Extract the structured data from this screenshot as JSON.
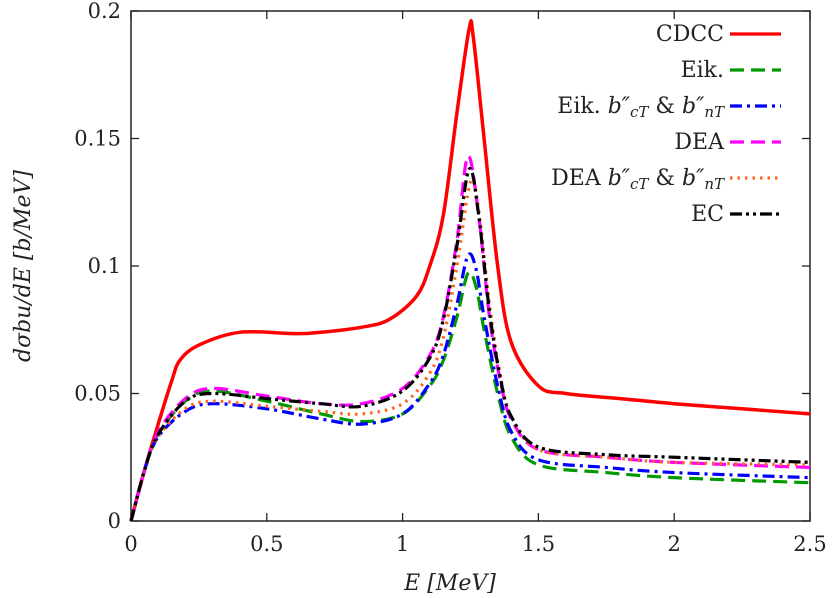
{
  "chart_data": {
    "type": "line",
    "title": "",
    "xlabel": "E [MeV]",
    "ylabel": "dσbu/dE [b/MeV]",
    "xlim": [
      0,
      2.5
    ],
    "ylim": [
      0,
      0.2
    ],
    "xticks": [
      "0",
      "0.5",
      "1",
      "1.5",
      "2",
      "2.5"
    ],
    "yticks": [
      "0",
      "0.05",
      "0.1",
      "0.15",
      "0.2"
    ],
    "grid": false,
    "legend_placement": "top-right",
    "series": [
      {
        "name": "CDCC",
        "color": "#ff0000",
        "dash": "solid",
        "x": [
          0,
          0.05,
          0.1,
          0.15,
          0.18,
          0.25,
          0.4,
          0.6,
          0.7,
          0.85,
          0.95,
          1.05,
          1.1,
          1.15,
          1.2,
          1.245,
          1.26,
          1.3,
          1.35,
          1.4,
          1.5,
          1.6,
          1.8,
          2.0,
          2.25,
          2.5
        ],
        "y": [
          0,
          0.02,
          0.038,
          0.055,
          0.063,
          0.069,
          0.074,
          0.0735,
          0.074,
          0.076,
          0.079,
          0.088,
          0.1,
          0.12,
          0.16,
          0.193,
          0.19,
          0.15,
          0.1,
          0.07,
          0.053,
          0.05,
          0.048,
          0.046,
          0.044,
          0.042
        ]
      },
      {
        "name": "Eik.",
        "color": "#009900",
        "dash": "dashed",
        "x": [
          0,
          0.05,
          0.1,
          0.2,
          0.3,
          0.5,
          0.7,
          0.85,
          1.0,
          1.1,
          1.15,
          1.2,
          1.24,
          1.27,
          1.3,
          1.35,
          1.4,
          1.5,
          1.75,
          2.0,
          2.5
        ],
        "y": [
          0,
          0.02,
          0.034,
          0.047,
          0.051,
          0.047,
          0.042,
          0.039,
          0.042,
          0.053,
          0.063,
          0.08,
          0.097,
          0.092,
          0.075,
          0.05,
          0.033,
          0.022,
          0.019,
          0.017,
          0.015
        ]
      },
      {
        "name": "Eik. b″cT & b″nT",
        "color": "#0000ff",
        "dash": "dashdot",
        "x": [
          0,
          0.05,
          0.1,
          0.2,
          0.3,
          0.5,
          0.7,
          0.85,
          1.0,
          1.1,
          1.15,
          1.2,
          1.24,
          1.27,
          1.3,
          1.35,
          1.4,
          1.5,
          1.75,
          2.0,
          2.5
        ],
        "y": [
          0,
          0.02,
          0.033,
          0.043,
          0.046,
          0.044,
          0.04,
          0.038,
          0.042,
          0.054,
          0.065,
          0.085,
          0.104,
          0.099,
          0.08,
          0.053,
          0.035,
          0.024,
          0.021,
          0.019,
          0.017
        ]
      },
      {
        "name": "DEA",
        "color": "#ff00ff",
        "dash": "dashed",
        "x": [
          0,
          0.05,
          0.1,
          0.2,
          0.3,
          0.5,
          0.7,
          0.85,
          1.0,
          1.1,
          1.15,
          1.2,
          1.24,
          1.28,
          1.32,
          1.36,
          1.4,
          1.5,
          1.75,
          2.0,
          2.5
        ],
        "y": [
          0,
          0.02,
          0.035,
          0.048,
          0.052,
          0.049,
          0.046,
          0.046,
          0.052,
          0.065,
          0.08,
          0.11,
          0.143,
          0.12,
          0.08,
          0.055,
          0.04,
          0.028,
          0.025,
          0.023,
          0.021
        ]
      },
      {
        "name": "DEA b″cT & b″nT",
        "color": "#ff6622",
        "dash": "dotted",
        "x": [
          0,
          0.05,
          0.1,
          0.2,
          0.3,
          0.5,
          0.7,
          0.85,
          1.0,
          1.1,
          1.15,
          1.2,
          1.25,
          1.28,
          1.32,
          1.36,
          1.4,
          1.5,
          1.75,
          2.0,
          2.5
        ],
        "y": [
          0,
          0.02,
          0.033,
          0.044,
          0.047,
          0.045,
          0.043,
          0.042,
          0.046,
          0.058,
          0.072,
          0.1,
          0.133,
          0.122,
          0.085,
          0.057,
          0.041,
          0.028,
          0.025,
          0.023,
          0.022
        ]
      },
      {
        "name": "EC",
        "color": "#000000",
        "dash": "dashdotdot",
        "x": [
          0,
          0.05,
          0.1,
          0.2,
          0.3,
          0.5,
          0.7,
          0.85,
          1.0,
          1.1,
          1.15,
          1.2,
          1.245,
          1.28,
          1.32,
          1.36,
          1.4,
          1.5,
          1.75,
          2.0,
          2.5
        ],
        "y": [
          0,
          0.02,
          0.034,
          0.047,
          0.05,
          0.048,
          0.046,
          0.045,
          0.051,
          0.064,
          0.079,
          0.108,
          0.138,
          0.12,
          0.082,
          0.056,
          0.041,
          0.029,
          0.026,
          0.025,
          0.023
        ]
      }
    ]
  }
}
